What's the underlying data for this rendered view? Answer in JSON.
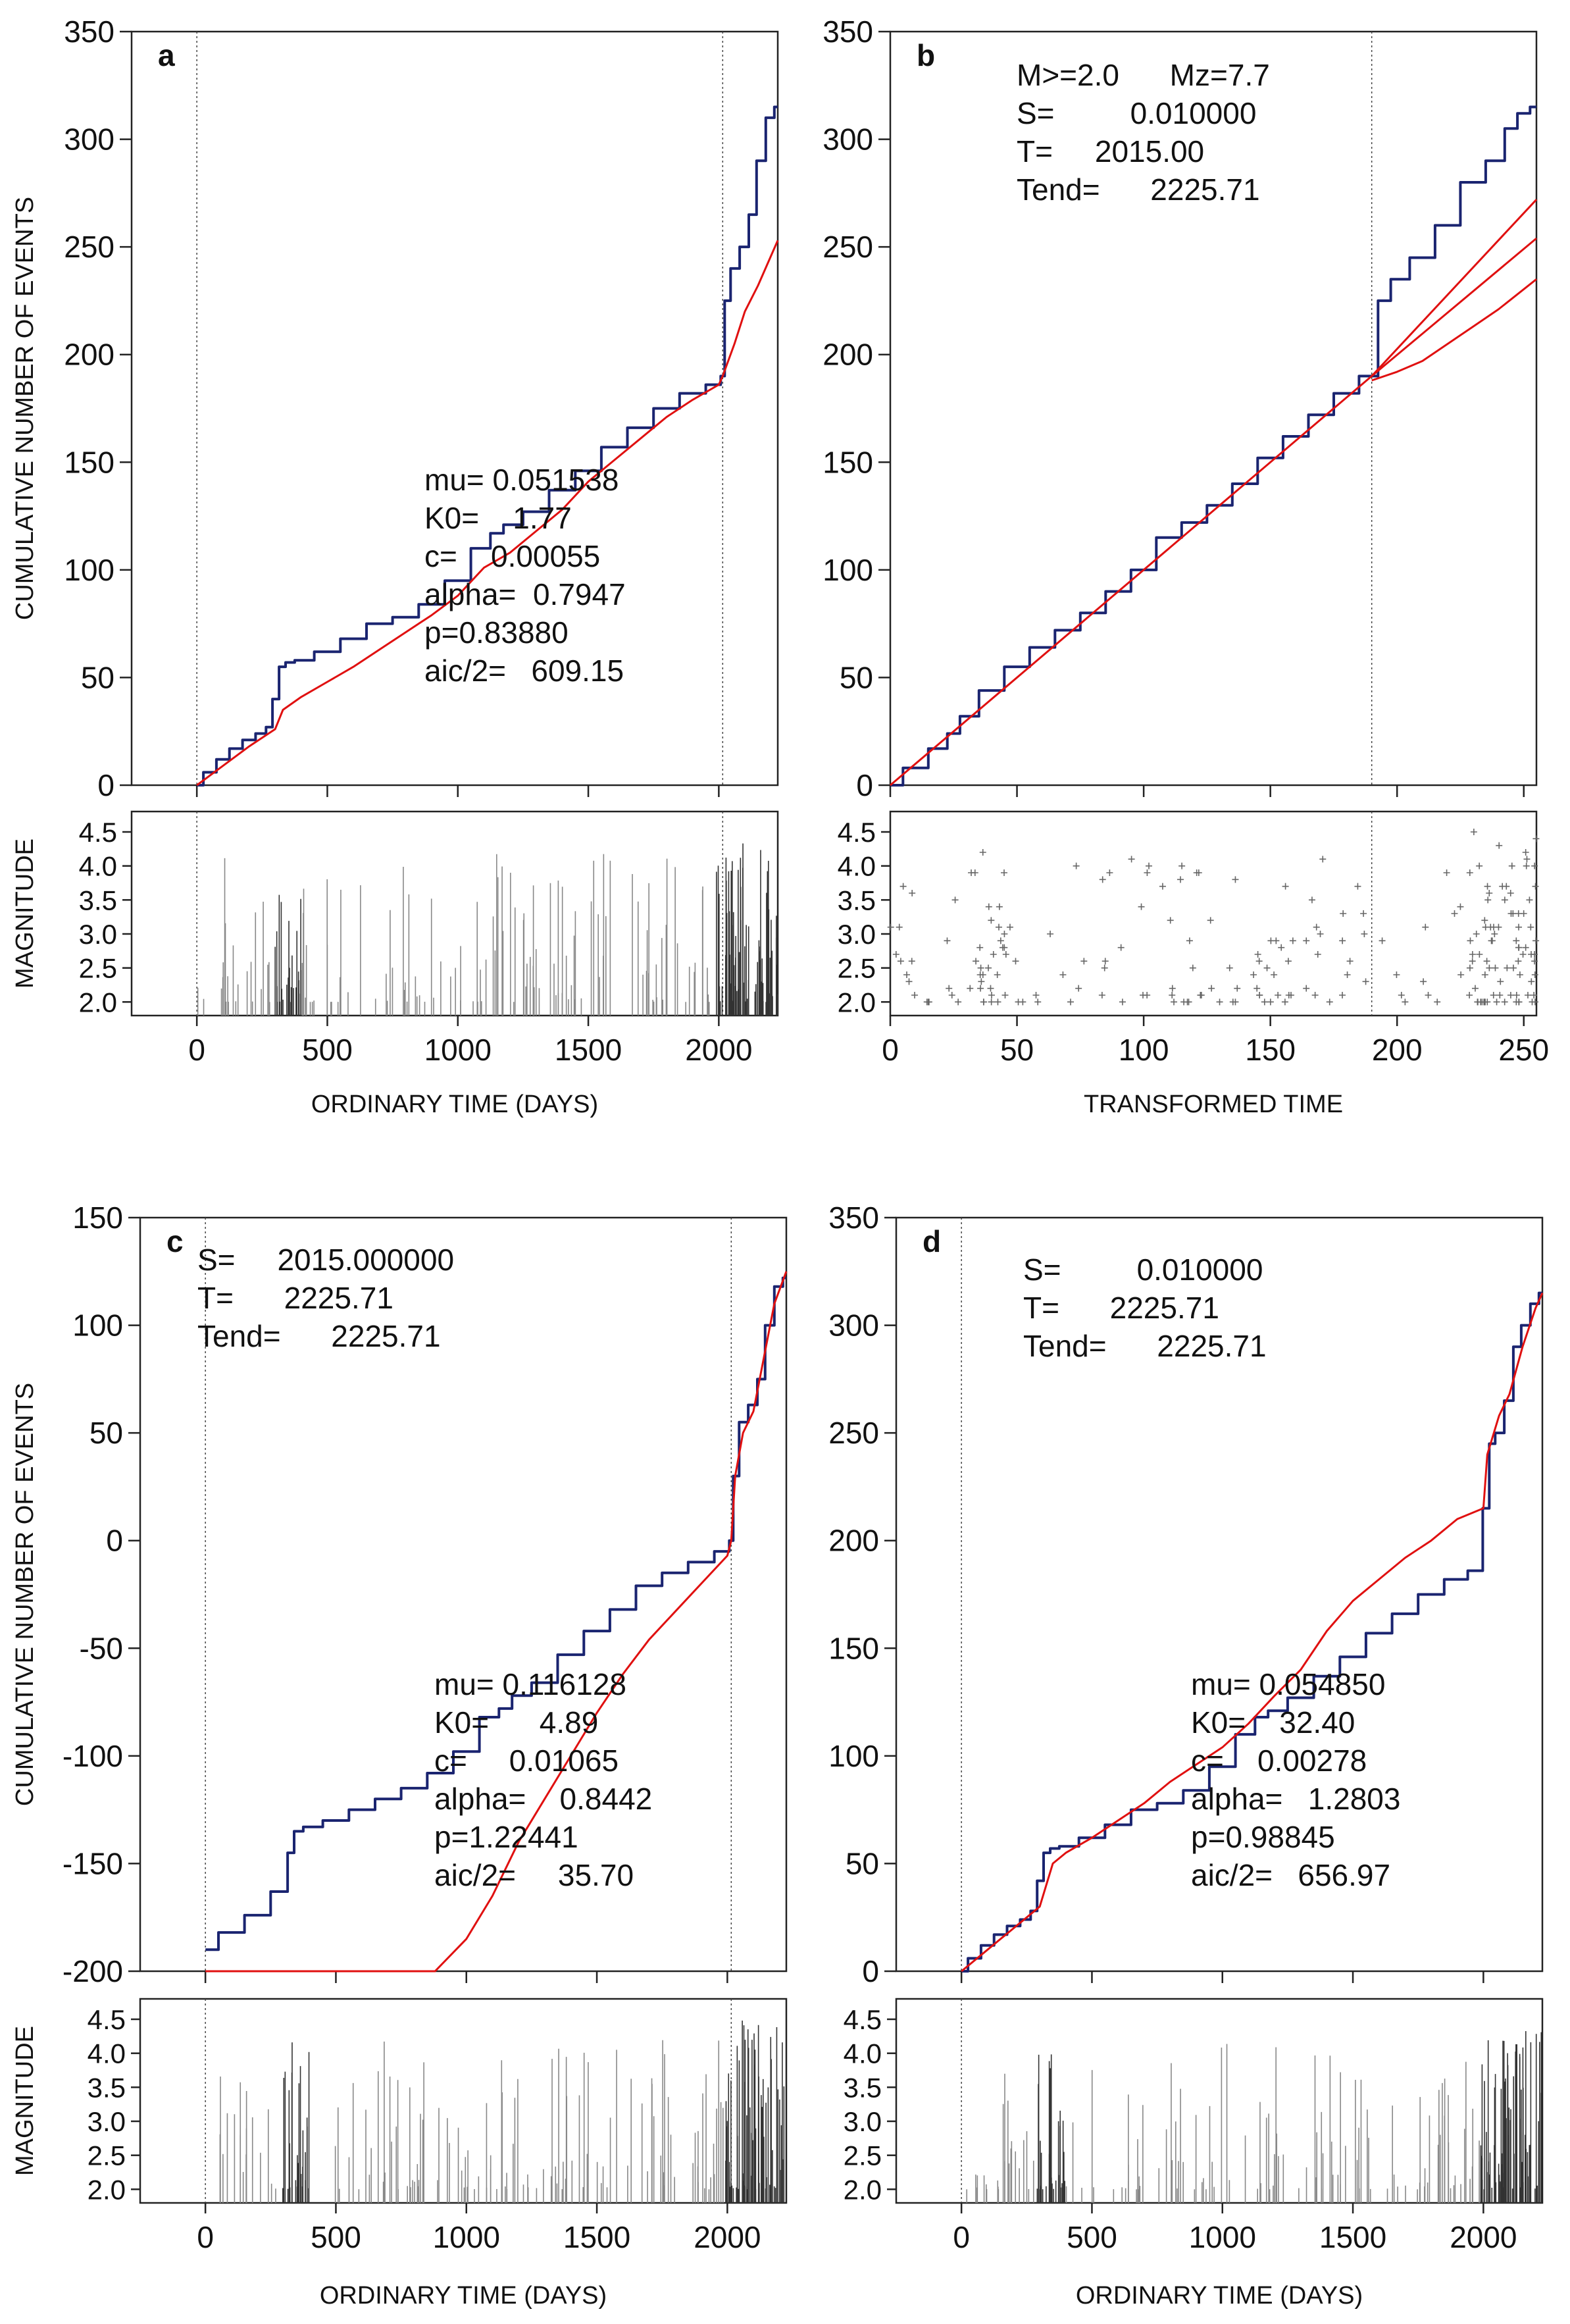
{
  "chart_data": [
    {
      "panel": "a",
      "type": "line",
      "title": "",
      "xlabel": "ORDINARY TIME (DAYS)",
      "ylabel": "CUMULATIVE NUMBER OF EVENTS",
      "xlim": [
        -250,
        2226
      ],
      "ylim": [
        0,
        350
      ],
      "x_ticks": [
        0,
        500,
        1000,
        1500,
        2000
      ],
      "y_ticks": [
        0,
        50,
        100,
        150,
        200,
        250,
        300,
        350
      ],
      "vlines": [
        0,
        2015
      ],
      "annotations": [
        "mu= 0.051538",
        "K0=    1.77",
        "c=    0.00055",
        "alpha=  0.7947",
        "p=0.83880",
        "aic/2=   609.15"
      ],
      "series": [
        {
          "name": "observed",
          "color": "#1a2470",
          "x": [
            0,
            50,
            100,
            150,
            200,
            250,
            280,
            300,
            330,
            350,
            400,
            500,
            600,
            700,
            800,
            900,
            1000,
            1100,
            1150,
            1200,
            1300,
            1400,
            1500,
            1600,
            1700,
            1800,
            1900,
            2000,
            2015,
            2030,
            2060,
            2100,
            2130,
            2160,
            2200,
            2226
          ],
          "y": [
            0,
            6,
            12,
            17,
            21,
            24,
            27,
            40,
            55,
            57,
            58,
            62,
            68,
            75,
            78,
            84,
            95,
            110,
            117,
            121,
            127,
            137,
            146,
            157,
            166,
            175,
            182,
            186,
            190,
            225,
            240,
            250,
            265,
            290,
            310,
            315
          ]
        },
        {
          "name": "model",
          "color": "#e01010",
          "x": [
            0,
            100,
            200,
            300,
            330,
            400,
            500,
            600,
            700,
            800,
            900,
            1000,
            1100,
            1200,
            1300,
            1400,
            1500,
            1600,
            1700,
            1800,
            1900,
            2000,
            2015,
            2060,
            2100,
            2150,
            2226
          ],
          "y": [
            0,
            9,
            18,
            26,
            35,
            41,
            48,
            55,
            63,
            71,
            79,
            88,
            101,
            108,
            118,
            128,
            141,
            151,
            161,
            171,
            179,
            186,
            190,
            205,
            220,
            232,
            253
          ]
        }
      ],
      "magnitude": {
        "xlabel": "ORDINARY TIME (DAYS)",
        "ylabel": "MAGNITUDE",
        "ylim": [
          1.8,
          4.8
        ],
        "y_ticks": [
          2.0,
          2.5,
          3.0,
          3.5,
          4.0,
          4.5
        ],
        "mode": "bars"
      }
    },
    {
      "panel": "b",
      "type": "line",
      "title": "",
      "xlabel": "TRANSFORMED TIME",
      "ylabel": "",
      "xlim": [
        0,
        255
      ],
      "ylim": [
        0,
        350
      ],
      "x_ticks": [
        0,
        50,
        100,
        150,
        200,
        250
      ],
      "y_ticks": [
        0,
        50,
        100,
        150,
        200,
        250,
        300,
        350
      ],
      "vlines": [
        190
      ],
      "annotations": [
        "M>=2.0      Mz=7.7",
        "S=         0.010000",
        "T=     2015.00",
        "Tend=      2225.71"
      ],
      "series": [
        {
          "name": "observed",
          "color": "#1a2470",
          "x": [
            0,
            10,
            20,
            25,
            30,
            40,
            50,
            60,
            70,
            80,
            90,
            100,
            110,
            120,
            130,
            140,
            150,
            160,
            170,
            180,
            190,
            195,
            200,
            210,
            220,
            230,
            240,
            245,
            250,
            255
          ],
          "y": [
            0,
            8,
            17,
            24,
            32,
            44,
            55,
            64,
            72,
            80,
            90,
            100,
            115,
            122,
            130,
            140,
            152,
            162,
            172,
            182,
            190,
            225,
            235,
            245,
            260,
            280,
            290,
            305,
            312,
            315
          ]
        },
        {
          "name": "model",
          "color": "#e01010",
          "x": [
            0,
            190
          ],
          "y": [
            0,
            190
          ]
        },
        {
          "name": "upper",
          "color": "#e01010",
          "x": [
            190,
            255
          ],
          "y": [
            190,
            272
          ]
        },
        {
          "name": "middle",
          "color": "#e01010",
          "x": [
            190,
            255
          ],
          "y": [
            190,
            254
          ]
        },
        {
          "name": "lower",
          "color": "#e01010",
          "x": [
            190,
            200,
            210,
            220,
            230,
            240,
            255
          ],
          "y": [
            188,
            192,
            197,
            205,
            213,
            221,
            235
          ]
        }
      ],
      "magnitude": {
        "xlabel": "TRANSFORMED TIME",
        "ylabel": "",
        "ylim": [
          1.8,
          4.8
        ],
        "y_ticks": [
          2.0,
          2.5,
          3.0,
          3.5,
          4.0,
          4.5
        ],
        "mode": "crosses"
      }
    },
    {
      "panel": "c",
      "type": "line",
      "title": "",
      "xlabel": "ORDINARY TIME (DAYS)",
      "ylabel": "CUMULATIVE NUMBER OF EVENTS",
      "xlim": [
        -250,
        2226
      ],
      "ylim": [
        -200,
        150
      ],
      "x_ticks": [
        0,
        500,
        1000,
        1500,
        2000
      ],
      "y_ticks": [
        -200,
        -150,
        -100,
        -50,
        0,
        50,
        100,
        150
      ],
      "vlines": [
        0,
        2015
      ],
      "annotations": [
        "S=     2015.000000",
        "T=      2225.71",
        "Tend=      2225.71",
        "mu= 0.116128",
        "K0=      4.89",
        "c=     0.01065",
        "alpha=    0.8442",
        "p=1.22441",
        "aic/2=     35.70"
      ],
      "series": [
        {
          "name": "observed",
          "color": "#1a2470",
          "x": [
            0,
            100,
            200,
            300,
            330,
            350,
            400,
            500,
            600,
            700,
            800,
            900,
            1000,
            1100,
            1150,
            1200,
            1300,
            1400,
            1500,
            1600,
            1700,
            1800,
            1900,
            2000,
            2015,
            2030,
            2060,
            2100,
            2130,
            2160,
            2200,
            2226
          ],
          "y": [
            -190,
            -182,
            -174,
            -163,
            -145,
            -135,
            -133,
            -130,
            -125,
            -120,
            -115,
            -108,
            -98,
            -82,
            -78,
            -72,
            -66,
            -53,
            -42,
            -32,
            -21,
            -15,
            -10,
            -5,
            0,
            30,
            55,
            63,
            75,
            100,
            118,
            122
          ]
        },
        {
          "name": "model",
          "color": "#e01010",
          "x": [
            0,
            500,
            880,
            1000,
            1100,
            1200,
            1300,
            1400,
            1500,
            1600,
            1700,
            1800,
            1900,
            2000,
            2015,
            2030,
            2060,
            2100,
            2140,
            2180,
            2226
          ],
          "y": [
            -200,
            -200,
            -200,
            -185,
            -165,
            -140,
            -120,
            -100,
            -80,
            -62,
            -46,
            -33,
            -20,
            -7,
            0,
            30,
            50,
            60,
            85,
            110,
            125
          ]
        }
      ],
      "magnitude": {
        "xlabel": "ORDINARY TIME (DAYS)",
        "ylabel": "MAGNITUDE",
        "ylim": [
          1.8,
          4.8
        ],
        "y_ticks": [
          2.0,
          2.5,
          3.0,
          3.5,
          4.0,
          4.5
        ],
        "mode": "bars"
      }
    },
    {
      "panel": "d",
      "type": "line",
      "title": "",
      "xlabel": "ORDINARY TIME (DAYS)",
      "ylabel": "",
      "xlim": [
        -250,
        2226
      ],
      "ylim": [
        0,
        350
      ],
      "x_ticks": [
        0,
        500,
        1000,
        1500,
        2000
      ],
      "y_ticks": [
        0,
        50,
        100,
        150,
        200,
        250,
        300,
        350
      ],
      "vlines": [
        0
      ],
      "annotations": [
        "S=         0.010000",
        "T=      2225.71",
        "Tend=      2225.71",
        "mu= 0.054850",
        "K0=    32.40",
        "c=    0.00278",
        "alpha=   1.2803",
        "p=0.98845",
        "aic/2=   656.97"
      ],
      "series": [
        {
          "name": "observed",
          "color": "#1a2470",
          "x": [
            0,
            50,
            100,
            150,
            200,
            250,
            280,
            300,
            330,
            350,
            400,
            500,
            600,
            700,
            800,
            900,
            1000,
            1100,
            1150,
            1200,
            1300,
            1400,
            1500,
            1600,
            1700,
            1800,
            1900,
            1980,
            2015,
            2030,
            2060,
            2100,
            2130,
            2160,
            2200,
            2226
          ],
          "y": [
            0,
            6,
            12,
            17,
            21,
            24,
            28,
            42,
            55,
            57,
            58,
            62,
            68,
            75,
            78,
            84,
            95,
            110,
            118,
            121,
            127,
            137,
            146,
            157,
            166,
            175,
            182,
            186,
            215,
            245,
            250,
            265,
            290,
            300,
            310,
            315
          ]
        },
        {
          "name": "model",
          "color": "#e01010",
          "x": [
            0,
            100,
            200,
            300,
            350,
            400,
            500,
            600,
            700,
            800,
            900,
            1000,
            1100,
            1200,
            1300,
            1400,
            1500,
            1600,
            1700,
            1800,
            1900,
            2000,
            2015,
            2060,
            2100,
            2150,
            2200,
            2226
          ],
          "y": [
            0,
            10,
            20,
            30,
            50,
            55,
            62,
            70,
            78,
            88,
            96,
            104,
            115,
            128,
            140,
            158,
            172,
            182,
            192,
            200,
            210,
            215,
            240,
            258,
            268,
            290,
            308,
            315
          ]
        }
      ],
      "magnitude": {
        "xlabel": "ORDINARY TIME (DAYS)",
        "ylabel": "",
        "ylim": [
          1.8,
          4.8
        ],
        "y_ticks": [
          2.0,
          2.5,
          3.0,
          3.5,
          4.0,
          4.5
        ],
        "mode": "bars"
      }
    }
  ]
}
